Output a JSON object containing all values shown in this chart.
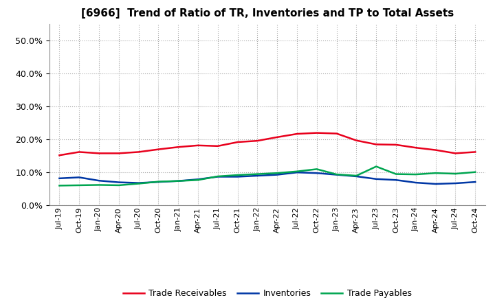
{
  "title": "[6966]  Trend of Ratio of TR, Inventories and TP to Total Assets",
  "x_labels": [
    "Jul-19",
    "Oct-19",
    "Jan-20",
    "Apr-20",
    "Jul-20",
    "Oct-20",
    "Jan-21",
    "Apr-21",
    "Jul-21",
    "Oct-21",
    "Jan-22",
    "Apr-22",
    "Jul-22",
    "Oct-22",
    "Jan-23",
    "Apr-23",
    "Jul-23",
    "Oct-23",
    "Jan-24",
    "Apr-24",
    "Jul-24",
    "Oct-24"
  ],
  "trade_receivables": [
    0.152,
    0.162,
    0.158,
    0.158,
    0.162,
    0.17,
    0.177,
    0.182,
    0.18,
    0.192,
    0.196,
    0.207,
    0.217,
    0.22,
    0.218,
    0.197,
    0.185,
    0.184,
    0.175,
    0.168,
    0.158,
    0.162
  ],
  "inventories": [
    0.082,
    0.085,
    0.075,
    0.07,
    0.068,
    0.071,
    0.074,
    0.079,
    0.087,
    0.087,
    0.09,
    0.093,
    0.1,
    0.098,
    0.093,
    0.088,
    0.08,
    0.077,
    0.069,
    0.065,
    0.067,
    0.071
  ],
  "trade_payables": [
    0.06,
    0.061,
    0.062,
    0.061,
    0.066,
    0.072,
    0.074,
    0.077,
    0.088,
    0.092,
    0.095,
    0.098,
    0.103,
    0.11,
    0.094,
    0.09,
    0.118,
    0.095,
    0.094,
    0.098,
    0.096,
    0.101
  ],
  "tr_color": "#e8001c",
  "inv_color": "#0037a5",
  "tp_color": "#00a550",
  "ylim": [
    0.0,
    0.55
  ],
  "yticks": [
    0.0,
    0.1,
    0.2,
    0.3,
    0.4,
    0.5
  ],
  "background_color": "#ffffff",
  "grid_color": "#aaaaaa",
  "legend_labels": [
    "Trade Receivables",
    "Inventories",
    "Trade Payables"
  ]
}
